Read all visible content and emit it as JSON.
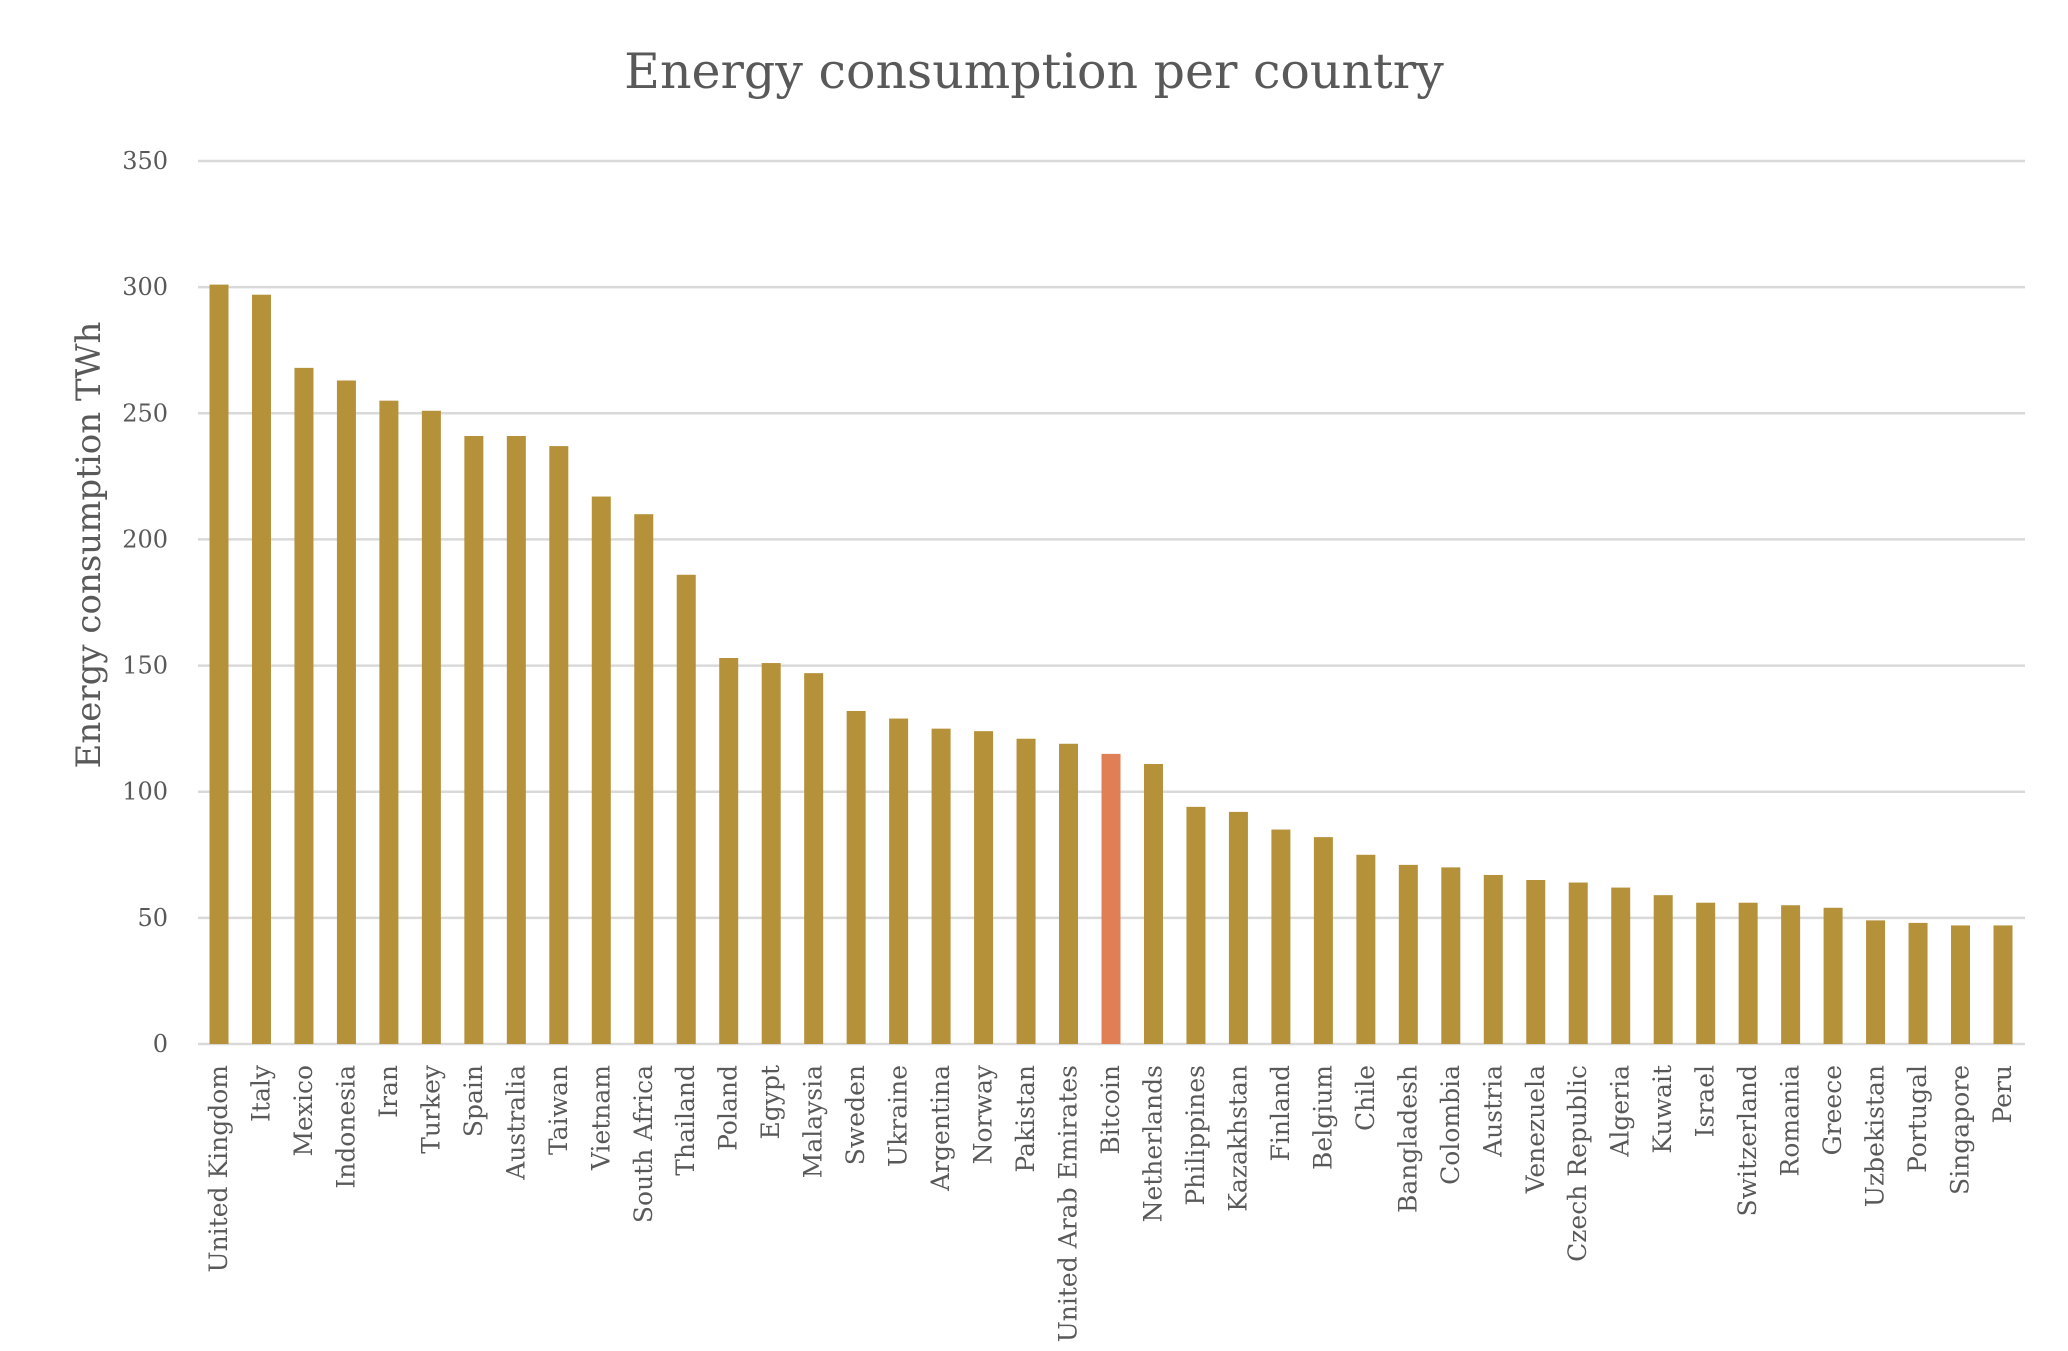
{
  "chart_data": {
    "type": "bar",
    "title": "Energy consumption per country",
    "xlabel": "",
    "ylabel": "Energy consumption TWh",
    "ylim": [
      0,
      350
    ],
    "yticks": [
      0,
      50,
      100,
      150,
      200,
      250,
      300,
      350
    ],
    "grid": true,
    "legend": "none",
    "bar_color": "#b5913a",
    "highlight_color": "#e07e55",
    "highlight_category": "Bitcoin",
    "categories": [
      "United Kingdom",
      "Italy",
      "Mexico",
      "Indonesia",
      "Iran",
      "Turkey",
      "Spain",
      "Australia",
      "Taiwan",
      "Vietnam",
      "South Africa",
      "Thailand",
      "Poland",
      "Egypt",
      "Malaysia",
      "Sweden",
      "Ukraine",
      "Argentina",
      "Norway",
      "Pakistan",
      "United Arab Emirates",
      "Bitcoin",
      "Netherlands",
      "Philippines",
      "Kazakhstan",
      "Finland",
      "Belgium",
      "Chile",
      "Bangladesh",
      "Colombia",
      "Austria",
      "Venezuela",
      "Czech Republic",
      "Algeria",
      "Kuwait",
      "Israel",
      "Switzerland",
      "Romania",
      "Greece",
      "Uzbekistan",
      "Portugal",
      "Singapore",
      "Peru"
    ],
    "values": [
      301,
      297,
      268,
      263,
      255,
      251,
      241,
      241,
      237,
      217,
      210,
      186,
      153,
      151,
      147,
      132,
      129,
      125,
      124,
      121,
      119,
      115,
      111,
      94,
      92,
      85,
      82,
      75,
      71,
      70,
      67,
      65,
      64,
      62,
      59,
      56,
      56,
      55,
      54,
      49,
      48,
      47,
      47
    ]
  }
}
